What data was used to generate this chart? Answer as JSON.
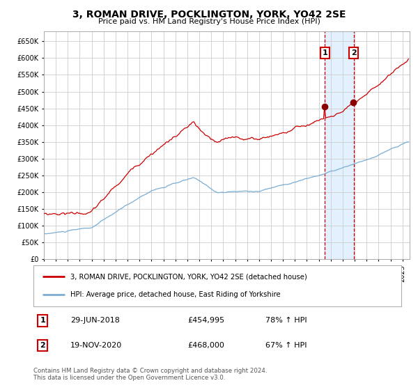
{
  "title": "3, ROMAN DRIVE, POCKLINGTON, YORK, YO42 2SE",
  "subtitle": "Price paid vs. HM Land Registry's House Price Index (HPI)",
  "legend_line1": "3, ROMAN DRIVE, POCKLINGTON, YORK, YO42 2SE (detached house)",
  "legend_line2": "HPI: Average price, detached house, East Riding of Yorkshire",
  "transaction1_date": "29-JUN-2018",
  "transaction1_price": 454995,
  "transaction1_hpi": "78%",
  "transaction2_date": "19-NOV-2020",
  "transaction2_price": 468000,
  "transaction2_hpi": "67%",
  "footer": "Contains HM Land Registry data © Crown copyright and database right 2024.\nThis data is licensed under the Open Government Licence v3.0.",
  "red_color": "#cc0000",
  "blue_color": "#7aadd4",
  "bg_color": "#ffffff",
  "grid_color": "#cccccc",
  "highlight_color": "#ddeeff",
  "ylim": [
    0,
    680000
  ],
  "yticks": [
    0,
    50000,
    100000,
    150000,
    200000,
    250000,
    300000,
    350000,
    400000,
    450000,
    500000,
    550000,
    600000,
    650000
  ],
  "start_year": 1995,
  "end_year": 2025
}
